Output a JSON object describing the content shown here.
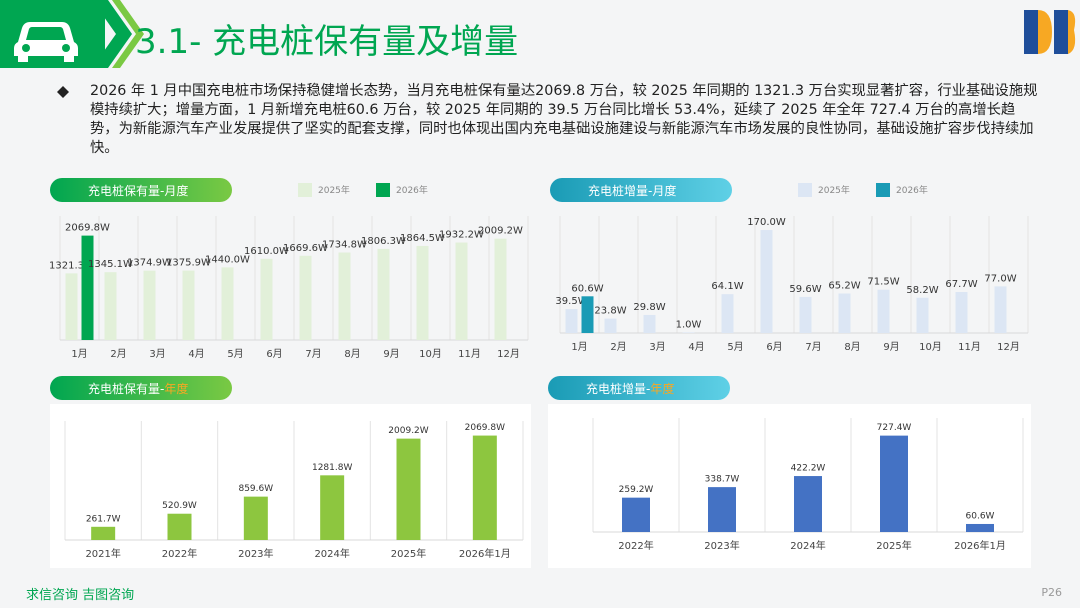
{
  "header": {
    "title": "3.1- 充电桩保有量及增量"
  },
  "text": "2026 年 1 月中国充电桩市场保持稳健增长态势，当月充电桩保有量达2069.8 万台，较 2025 年同期的 1321.3 万台实现显著扩容，行业基础设施规模持续扩大；增量方面，1 月新增充电桩60.6 万台，较 2025 年同期的 39.5 万台同比增长 53.4%，延续了 2025 年全年 727.4 万台的高增长趋势，为新能源汽车产业发展提供了坚实的配套支撑，同时也体现出国内充电基础设施建设与新能源汽车市场发展的良性协同，基础设施扩容步伐持续加快。",
  "footer": "求信咨询 吉图咨询",
  "page": "P26",
  "chart_data": [
    {
      "type": "bar",
      "title": "充电桩保有量-月度",
      "categories": [
        "1月",
        "2月",
        "3月",
        "4月",
        "5月",
        "6月",
        "7月",
        "8月",
        "9月",
        "10月",
        "11月",
        "12月"
      ],
      "series": [
        {
          "name": "2025年",
          "color": "#e2f0d9",
          "values": [
            1321.3,
            1345.1,
            1374.9,
            1375.9,
            1440.0,
            1610.0,
            1669.6,
            1734.8,
            1806.3,
            1864.5,
            1932.2,
            2009.2
          ],
          "value_labels": [
            "1321.3W",
            "1345.1W",
            "1374.9W",
            "1375.9W",
            "1440.0W",
            "1610.0W",
            "1669.6W",
            "1734.8W",
            "1806.3W",
            "1864.5W",
            "1932.2W",
            "2009.2W"
          ]
        },
        {
          "name": "2026年",
          "color": "#00a651",
          "values": [
            2069.8,
            null,
            null,
            null,
            null,
            null,
            null,
            null,
            null,
            null,
            null,
            null
          ],
          "value_labels": [
            "2069.8W",
            null,
            null,
            null,
            null,
            null,
            null,
            null,
            null,
            null,
            null,
            null
          ]
        }
      ],
      "ylim": [
        0,
        2300
      ]
    },
    {
      "type": "bar",
      "title": "充电桩增量-月度",
      "categories": [
        "1月",
        "2月",
        "3月",
        "4月",
        "5月",
        "6月",
        "7月",
        "8月",
        "9月",
        "10月",
        "11月",
        "12月"
      ],
      "series": [
        {
          "name": "2025年",
          "color": "#dce6f4",
          "values": [
            39.5,
            23.8,
            29.8,
            1.0,
            64.1,
            170.0,
            59.6,
            65.2,
            71.5,
            58.2,
            67.7,
            77.0
          ],
          "value_labels": [
            "39.5W",
            "23.8W",
            "29.8W",
            "1.0W",
            "64.1W",
            "170.0W",
            "59.6W",
            "65.2W",
            "71.5W",
            "58.2W",
            "67.7W",
            "77.0W"
          ]
        },
        {
          "name": "2026年",
          "color": "#1a9bb5",
          "values": [
            60.6,
            null,
            null,
            null,
            null,
            null,
            null,
            null,
            null,
            null,
            null,
            null
          ],
          "value_labels": [
            "60.6W",
            null,
            null,
            null,
            null,
            null,
            null,
            null,
            null,
            null,
            null,
            null
          ]
        }
      ],
      "ylim": [
        0,
        180
      ]
    },
    {
      "type": "bar",
      "title": "充电桩保有量-",
      "title_highlight": "年度",
      "categories": [
        "2021年",
        "2022年",
        "2023年",
        "2024年",
        "2025年",
        "2026年1月"
      ],
      "values": [
        261.7,
        520.9,
        859.6,
        1281.8,
        2009.2,
        2069.8
      ],
      "value_labels": [
        "261.7W",
        "520.9W",
        "859.6W",
        "1281.8W",
        "2009.2W",
        "2069.8W"
      ],
      "color": "#8dc63f",
      "ylim": [
        0,
        2200
      ]
    },
    {
      "type": "bar",
      "title": "充电桩增量-",
      "title_highlight": "年度",
      "categories": [
        "2022年",
        "2023年",
        "2024年",
        "2025年",
        "2026年1月"
      ],
      "values": [
        259.2,
        338.7,
        422.2,
        727.4,
        60.6
      ],
      "value_labels": [
        "259.2W",
        "338.7W",
        "422.2W",
        "727.4W",
        "60.6W"
      ],
      "color": "#4472c4",
      "ylim": [
        0,
        800
      ]
    }
  ]
}
